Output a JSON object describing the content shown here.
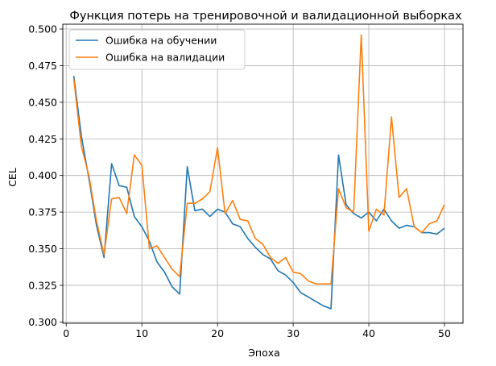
{
  "chart_data": {
    "type": "line",
    "title": "Функция потерь на тренировочной и валидационной выборках",
    "xlabel": "Эпоха",
    "ylabel": "CEL",
    "xlim": [
      -0.45,
      52.45
    ],
    "ylim": [
      0.2991,
      0.5033
    ],
    "xticks": [
      0,
      10,
      20,
      30,
      40,
      50
    ],
    "xtick_labels": [
      "0",
      "10",
      "20",
      "30",
      "40",
      "50"
    ],
    "yticks": [
      0.3,
      0.325,
      0.35,
      0.375,
      0.4,
      0.425,
      0.45,
      0.475,
      0.5
    ],
    "ytick_labels": [
      "0.300",
      "0.325",
      "0.350",
      "0.375",
      "0.400",
      "0.425",
      "0.450",
      "0.475",
      "0.500"
    ],
    "grid": true,
    "legend": "top-left",
    "x": [
      1,
      2,
      3,
      4,
      5,
      6,
      7,
      8,
      9,
      10,
      11,
      12,
      13,
      14,
      15,
      16,
      17,
      18,
      19,
      20,
      21,
      22,
      23,
      24,
      25,
      26,
      27,
      28,
      29,
      30,
      31,
      32,
      33,
      34,
      35,
      36,
      37,
      38,
      39,
      40,
      41,
      42,
      43,
      44,
      45,
      46,
      47,
      48,
      49,
      50
    ],
    "series": [
      {
        "name": "Ошибка на обучении",
        "color": "#1f77b4",
        "values": [
          0.468,
          0.427,
          0.398,
          0.366,
          0.344,
          0.408,
          0.393,
          0.392,
          0.372,
          0.365,
          0.355,
          0.341,
          0.334,
          0.324,
          0.319,
          0.406,
          0.376,
          0.377,
          0.372,
          0.377,
          0.375,
          0.367,
          0.365,
          0.357,
          0.351,
          0.346,
          0.343,
          0.335,
          0.332,
          0.327,
          0.32,
          0.317,
          0.314,
          0.311,
          0.309,
          0.414,
          0.38,
          0.374,
          0.371,
          0.375,
          0.369,
          0.377,
          0.369,
          0.364,
          0.366,
          0.365,
          0.361,
          0.361,
          0.36,
          0.364
        ]
      },
      {
        "name": "Ошибка на валидации",
        "color": "#ff7f0e",
        "values": [
          0.466,
          0.42,
          0.4,
          0.369,
          0.346,
          0.384,
          0.385,
          0.374,
          0.414,
          0.407,
          0.35,
          0.352,
          0.344,
          0.336,
          0.331,
          0.381,
          0.381,
          0.384,
          0.389,
          0.419,
          0.374,
          0.383,
          0.37,
          0.369,
          0.357,
          0.353,
          0.344,
          0.34,
          0.344,
          0.334,
          0.333,
          0.328,
          0.326,
          0.326,
          0.326,
          0.391,
          0.378,
          0.375,
          0.496,
          0.362,
          0.377,
          0.373,
          0.44,
          0.385,
          0.391,
          0.365,
          0.361,
          0.367,
          0.369,
          0.38
        ]
      }
    ]
  }
}
